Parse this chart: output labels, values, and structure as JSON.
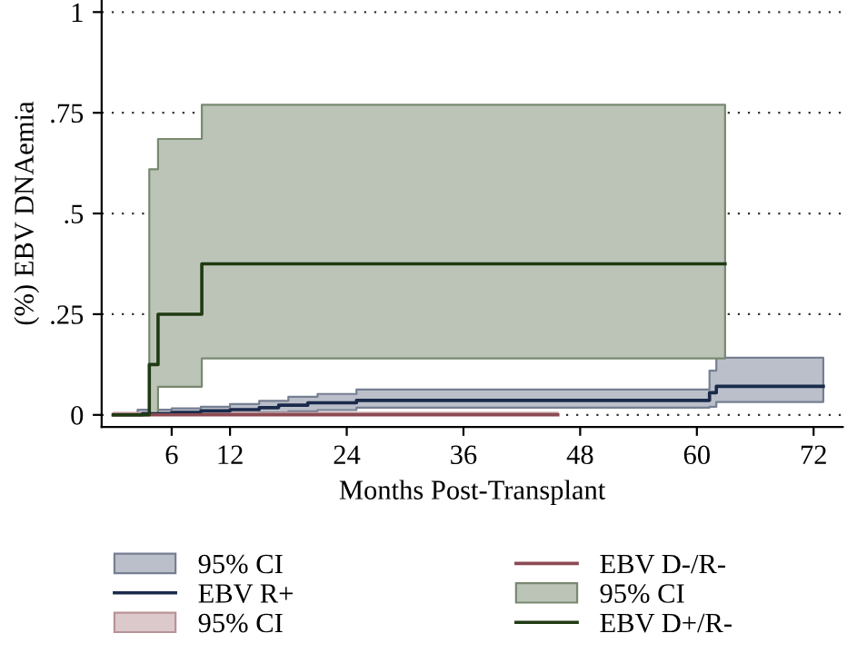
{
  "chart_data": {
    "type": "step",
    "xlabel": "Months Post-Transplant",
    "ylabel": "(%) EBV DNAemia",
    "xlim": [
      -1.2,
      75
    ],
    "ylim": [
      -0.03,
      1.03
    ],
    "xticks": [
      6,
      12,
      24,
      36,
      48,
      60,
      72
    ],
    "yticks": [
      {
        "value": 0,
        "label": "0"
      },
      {
        "value": 0.25,
        "label": ".25"
      },
      {
        "value": 0.5,
        "label": ".5"
      },
      {
        "value": 0.75,
        "label": ".75"
      },
      {
        "value": 1,
        "label": "1"
      }
    ],
    "grid": "y",
    "legend": "bottom",
    "annotations": [
      "95% CI",
      "95% CI",
      "95% CI"
    ],
    "series": [
      {
        "name": "EBV R+",
        "color": "#1a2a4a",
        "x": [
          0,
          2.5,
          3,
          6,
          9,
          12,
          15,
          17,
          18,
          20,
          21,
          25,
          61.3,
          62,
          73
        ],
        "values": [
          0,
          0,
          0.003,
          0.006,
          0.01,
          0.013,
          0.018,
          0.024,
          0.024,
          0.03,
          0.03,
          0.036,
          0.055,
          0.071,
          0.071
        ],
        "lower": [
          null,
          0,
          0,
          0,
          0.002,
          0.004,
          0.006,
          0.006,
          0.009,
          0.009,
          0.012,
          0.018,
          0.02,
          0.032,
          0.032
        ],
        "upper": [
          null,
          0.013,
          0.013,
          0.016,
          0.02,
          0.027,
          0.035,
          0.035,
          0.045,
          0.045,
          0.052,
          0.063,
          0.11,
          0.142,
          0.142
        ]
      },
      {
        "name": "EBV D-/R-",
        "color": "#8b4a52",
        "x": [
          0,
          45.7
        ],
        "values": [
          0,
          0
        ],
        "lower": [
          0,
          0
        ],
        "upper": [
          0.005,
          0.005
        ]
      },
      {
        "name": "EBV D+/R-",
        "color": "#1f3a12",
        "x": [
          0,
          3.7,
          4.6,
          9.1,
          62.9
        ],
        "values": [
          0,
          0.125,
          0.25,
          0.375,
          0.375
        ],
        "lower": [
          null,
          0,
          0.07,
          0.14,
          0.14
        ],
        "upper": [
          null,
          0.61,
          0.685,
          0.77,
          0.77
        ]
      }
    ]
  }
}
